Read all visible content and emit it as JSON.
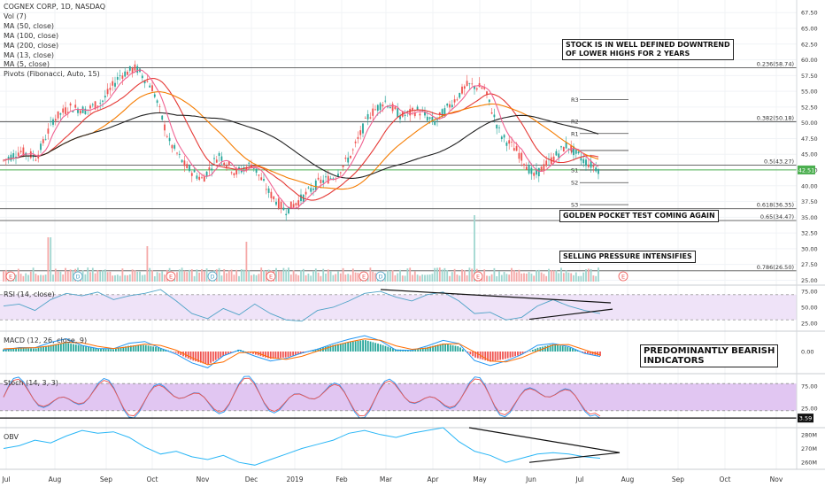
{
  "header": {
    "symbol": "COGNEX CORP, 1D, NASDAQ",
    "vol": "Vol (7)",
    "ma50": "MA (50, close)",
    "ma100": "MA (100, close)",
    "ma200": "MA (200, close)",
    "ma13": "MA (13, close)",
    "ma5": "MA (5, close)",
    "pivots": "Pivots (Fibonacci, Auto, 15)"
  },
  "annotations": {
    "downtrend_line1": "STOCK IS IN WELL DEFINED DOWNTREND",
    "downtrend_line2": "OF LOWER HIGHS FOR 2 YEARS",
    "golden_pocket": "GOLDEN POCKET TEST COMING AGAIN",
    "selling_pressure": "SELLING PRESSURE INTENSIFIES",
    "bearish_line1": "PREDOMINANTLY BEARISH",
    "bearish_line2": "INDICATORS"
  },
  "colors": {
    "up": "#26a69a",
    "down": "#ef5350",
    "ma50": "#e53935",
    "ma100": "#f57c00",
    "ma200": "#212121",
    "ma13": "#f06292",
    "rsi": "#4fa3c7",
    "macd_line": "#2196f3",
    "macd_signal": "#ff6d00",
    "stoch_k": "#2196f3",
    "stoch_d": "#ef5350",
    "obv": "#29b6f6",
    "rsi_band": "#efe3f8",
    "stoch_band": "#e1c6f2",
    "pivot_green": "#4caf50"
  },
  "chart_data": [
    {
      "type": "candlestick",
      "title": "COGNEX CORP, 1D, NASDAQ",
      "x_ticks": [
        "Jul",
        "Aug",
        "Sep",
        "Oct",
        "Nov",
        "Dec",
        "2019",
        "Feb",
        "Mar",
        "Apr",
        "May",
        "Jun",
        "Jul",
        "Aug",
        "Sep",
        "Oct",
        "Nov"
      ],
      "y_ticks": [
        "67.50",
        "65.00",
        "62.50",
        "60.00",
        "57.50",
        "55.00",
        "52.50",
        "50.00",
        "47.50",
        "45.00",
        "42.50",
        "40.00",
        "37.50",
        "35.00",
        "32.50",
        "30.00",
        "27.50",
        "25.00"
      ],
      "ylim": [
        24.5,
        69.5
      ],
      "last_price": "42.51",
      "close_path": [
        [
          "Jul",
          44.0
        ],
        [
          "Jul",
          45.5
        ],
        [
          "Aug",
          44.5
        ],
        [
          "Aug",
          50.5
        ],
        [
          "Aug",
          52.5
        ],
        [
          "Sep",
          52.0
        ],
        [
          "Sep",
          53.5
        ],
        [
          "Sep",
          57.5
        ],
        [
          "Oct",
          58.7
        ],
        [
          "Oct",
          55.5
        ],
        [
          "Oct",
          47.0
        ],
        [
          "Oct",
          43.0
        ],
        [
          "Nov",
          41.0
        ],
        [
          "Nov",
          45.0
        ],
        [
          "Nov",
          42.0
        ],
        [
          "Dec",
          43.5
        ],
        [
          "Dec",
          39.0
        ],
        [
          "Dec",
          36.0
        ],
        [
          "2019",
          38.0
        ],
        [
          "2019",
          40.5
        ],
        [
          "2019",
          41.5
        ],
        [
          "Feb",
          45.0
        ],
        [
          "Feb",
          51.0
        ],
        [
          "Mar",
          53.5
        ],
        [
          "Mar",
          51.0
        ],
        [
          "Mar",
          52.0
        ],
        [
          "Apr",
          50.0
        ],
        [
          "Apr",
          53.0
        ],
        [
          "Apr",
          56.0
        ],
        [
          "May",
          55.5
        ],
        [
          "May",
          48.0
        ],
        [
          "May",
          45.5
        ],
        [
          "Jun",
          41.5
        ],
        [
          "Jun",
          44.0
        ],
        [
          "Jul",
          46.5
        ],
        [
          "Jul",
          44.0
        ],
        [
          "Jul",
          42.5
        ]
      ],
      "moving_averages": [
        {
          "name": "MA (50, close)",
          "color": "#e53935"
        },
        {
          "name": "MA (100, close)",
          "color": "#f57c00"
        },
        {
          "name": "MA (200, close)",
          "color": "#212121"
        },
        {
          "name": "MA (13, close)",
          "color": "#f06292"
        }
      ],
      "fib_levels": [
        {
          "label": "0.236(58.74)",
          "value": 58.74
        },
        {
          "label": "0.382(50.18)",
          "value": 50.18
        },
        {
          "label": "0.5(43.27)",
          "value": 43.27
        },
        {
          "label": "0.618(36.35)",
          "value": 36.35
        },
        {
          "label": "0.65(34.47)",
          "value": 34.47
        },
        {
          "label": "0.786(26.50)",
          "value": 26.5
        }
      ],
      "pivots": [
        {
          "label": "R3",
          "value": 53.7
        },
        {
          "label": "R2",
          "value": 50.2
        },
        {
          "label": "R1",
          "value": 48.3
        },
        {
          "label": "P",
          "value": 45.6
        },
        {
          "label": "S1",
          "value": 42.5
        },
        {
          "label": "S2",
          "value": 40.5
        },
        {
          "label": "S3",
          "value": 37.0
        }
      ],
      "trendline": "horizontal support near 42.51 (green)"
    },
    {
      "type": "bar",
      "name": "Vol (7)",
      "spikes": [
        "Aug",
        "Oct",
        "Dec",
        "May"
      ],
      "markers": [
        "E",
        "D",
        "E",
        "D",
        "E",
        "E",
        "D",
        "E",
        "E"
      ]
    },
    {
      "type": "line",
      "name": "RSI (14, close)",
      "y_ticks": [
        "75.00",
        "50.00",
        "25.00"
      ],
      "ylim": [
        15,
        85
      ],
      "band": [
        30,
        70
      ],
      "values": [
        52,
        55,
        45,
        62,
        72,
        68,
        74,
        62,
        68,
        72,
        78,
        60,
        40,
        32,
        48,
        38,
        55,
        40,
        30,
        28,
        45,
        50,
        60,
        72,
        75,
        66,
        60,
        70,
        74,
        60,
        40,
        42,
        30,
        34,
        52,
        62,
        52,
        45,
        40
      ],
      "divergence_lines": [
        "falling highs line from Mar to Jul",
        "rising lows line from Jun to Jul"
      ]
    },
    {
      "type": "bar",
      "name": "MACD (12, 26, close, 9)",
      "y_ticks": [
        "0.00"
      ],
      "ylim": [
        -2.8,
        2.8
      ],
      "histogram": [
        0.3,
        0.5,
        0.4,
        0.9,
        1.2,
        0.8,
        0.4,
        0.3,
        0.8,
        0.9,
        0.5,
        -0.2,
        -1.2,
        -1.8,
        -0.6,
        0.3,
        -0.4,
        -1.0,
        -0.8,
        -0.3,
        0.4,
        0.9,
        1.3,
        1.6,
        1.0,
        0.3,
        0.2,
        0.6,
        1.1,
        0.7,
        -0.8,
        -1.4,
        -1.0,
        -0.4,
        0.5,
        1.0,
        0.6,
        -0.2,
        -0.6
      ]
    },
    {
      "type": "line",
      "name": "Stoch (14, 3, 3)",
      "y_ticks": [
        "75.00",
        "25.00"
      ],
      "ylim": [
        -2,
        102
      ],
      "band": [
        20,
        80
      ],
      "last_value": "3.59"
    },
    {
      "type": "line",
      "name": "OBV",
      "y_ticks": [
        "280M",
        "270M",
        "260M"
      ],
      "ylim": [
        255,
        285
      ],
      "values": [
        270,
        272,
        276,
        274,
        279,
        283,
        281,
        282,
        278,
        271,
        266,
        268,
        264,
        262,
        265,
        260,
        258,
        262,
        266,
        270,
        273,
        276,
        281,
        283,
        280,
        278,
        281,
        283,
        285,
        275,
        268,
        265,
        260,
        263,
        266,
        267,
        266,
        264,
        263
      ],
      "trendlines": [
        "falling line from May high",
        "rising line from Jun low",
        "lines converge near Aug"
      ]
    }
  ]
}
